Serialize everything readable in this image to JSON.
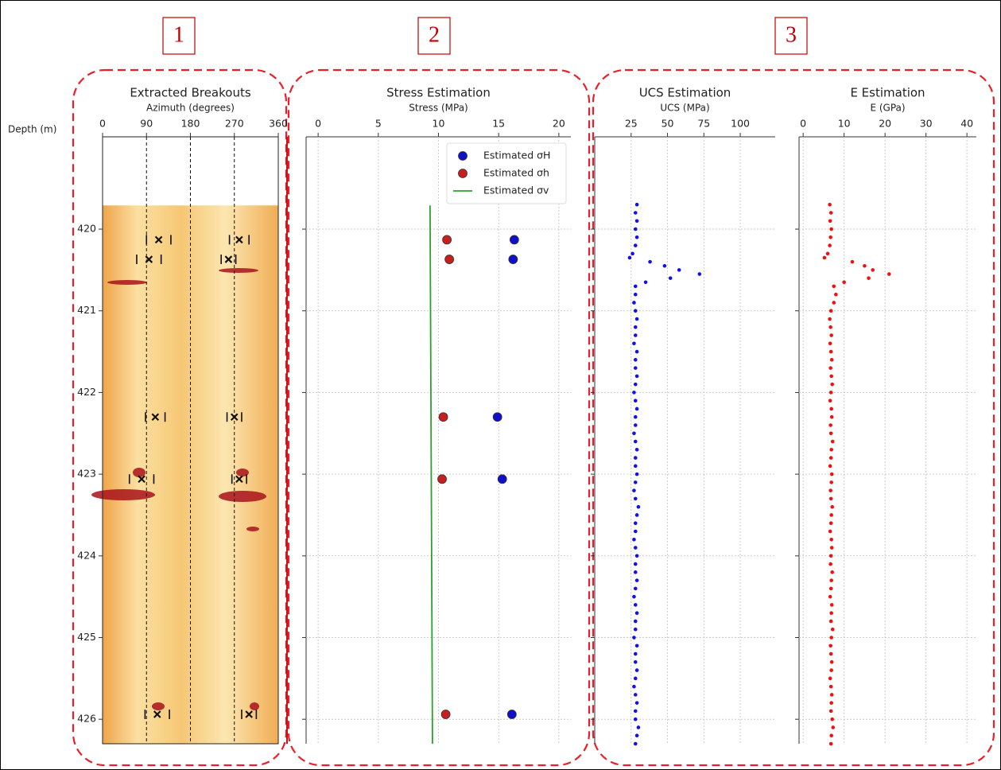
{
  "panel_labels": [
    "1",
    "2",
    "3"
  ],
  "chart_data": [
    {
      "type": "breakout",
      "title": "Extracted Breakouts",
      "xlabel": "Azimuth (degrees)",
      "ylabel": "Depth (m)",
      "xlim": [
        0,
        360
      ],
      "xticks": [
        0,
        90,
        180,
        270,
        360
      ],
      "ylim": [
        418.87,
        426.3
      ],
      "yticks": [
        420,
        421,
        422,
        423,
        424,
        425,
        426
      ],
      "show_ytick_labels": true,
      "grid": true,
      "image_ylim": [
        419.71,
        426.3
      ],
      "series": [
        {
          "color": "#111111",
          "x": [
            115,
            280,
            95,
            258,
            108,
            270,
            80,
            280,
            112,
            300
          ],
          "y": [
            420.13,
            420.13,
            420.37,
            420.37,
            422.3,
            422.3,
            423.06,
            423.06,
            425.94,
            425.94
          ],
          "xerr": [
            25,
            20,
            25,
            15,
            20,
            15,
            25,
            15,
            25,
            15
          ]
        }
      ]
    },
    {
      "type": "scatter",
      "title": "Stress Estimation",
      "xlabel": "Stress (MPa)",
      "xlim": [
        -1,
        21
      ],
      "xticks": [
        0,
        5,
        10,
        15,
        20
      ],
      "ylim": [
        418.87,
        426.3
      ],
      "yticks": [
        420,
        421,
        422,
        423,
        424,
        425,
        426
      ],
      "show_ytick_labels": false,
      "grid": true,
      "legend": "upper right",
      "series": [
        {
          "name": "Estimated σH",
          "color": "#1010c8",
          "x": [
            16.3,
            16.2,
            14.9,
            15.3,
            16.1
          ],
          "y": [
            420.13,
            420.37,
            422.3,
            423.06,
            425.94
          ]
        },
        {
          "name": "Estimated σh",
          "color": "#c81e1e",
          "x": [
            10.7,
            10.9,
            10.4,
            10.3,
            10.6
          ],
          "y": [
            420.13,
            420.37,
            422.3,
            423.06,
            425.94
          ]
        },
        {
          "name": "Estimated σv",
          "color": "#2ca02c",
          "kind": "line",
          "x": [
            9.3,
            9.5
          ],
          "y": [
            419.71,
            426.3
          ]
        }
      ]
    },
    {
      "type": "scatter",
      "title": "UCS Estimation",
      "xlabel": "UCS (MPa)",
      "xlim": [
        0,
        124
      ],
      "xticks": [
        25,
        50,
        75,
        100
      ],
      "ylim": [
        418.87,
        426.3
      ],
      "yticks": [
        420,
        421,
        422,
        423,
        424,
        425,
        426
      ],
      "show_ytick_labels": false,
      "grid": true,
      "series": [
        {
          "color": "#1010f0",
          "kind": "dots",
          "x": [
            29,
            28,
            29,
            28,
            29,
            28,
            26,
            24,
            38,
            48,
            58,
            72,
            52,
            35,
            28,
            28,
            27,
            28,
            29,
            28,
            28,
            27,
            29,
            28,
            28,
            29,
            28,
            27,
            28,
            29,
            28,
            28,
            27,
            28,
            29,
            28,
            28,
            29,
            28,
            27,
            28,
            30,
            29,
            28,
            28,
            27,
            28,
            29,
            28,
            28,
            29,
            28,
            27,
            28,
            29,
            28,
            28,
            27,
            29,
            28,
            28,
            29,
            28,
            27,
            28,
            29,
            28,
            28,
            30,
            29,
            28
          ],
          "y": [
            419.7,
            419.8,
            419.9,
            420.0,
            420.1,
            420.2,
            420.3,
            420.35,
            420.4,
            420.45,
            420.5,
            420.55,
            420.6,
            420.65,
            420.7,
            420.8,
            420.9,
            421.0,
            421.1,
            421.2,
            421.3,
            421.4,
            421.5,
            421.6,
            421.7,
            421.8,
            421.9,
            422.0,
            422.1,
            422.2,
            422.3,
            422.4,
            422.5,
            422.6,
            422.7,
            422.8,
            422.9,
            423.0,
            423.1,
            423.2,
            423.3,
            423.4,
            423.5,
            423.6,
            423.7,
            423.8,
            423.9,
            424.0,
            424.1,
            424.2,
            424.3,
            424.4,
            424.5,
            424.6,
            424.7,
            424.8,
            424.9,
            425.0,
            425.1,
            425.2,
            425.3,
            425.4,
            425.5,
            425.6,
            425.7,
            425.8,
            425.9,
            426.0,
            426.1,
            426.2,
            426.3
          ]
        }
      ]
    },
    {
      "type": "scatter",
      "title": "E Estimation",
      "xlabel": "E (GPa)",
      "xlim": [
        -1,
        42.3
      ],
      "xticks": [
        0,
        10,
        20,
        30,
        40
      ],
      "ylim": [
        418.87,
        426.3
      ],
      "yticks": [
        420,
        421,
        422,
        423,
        424,
        425,
        426
      ],
      "show_ytick_labels": false,
      "grid": true,
      "series": [
        {
          "color": "#f01010",
          "kind": "dots",
          "x": [
            6.5,
            6.8,
            6.6,
            6.9,
            6.7,
            6.5,
            6,
            5.2,
            12,
            15,
            17,
            21,
            16,
            10,
            7.5,
            8,
            7.5,
            6.8,
            6.5,
            6.7,
            6.9,
            6.6,
            6.8,
            7,
            6.7,
            6.9,
            7.1,
            6.8,
            6.6,
            6.9,
            7,
            6.7,
            6.8,
            7.2,
            6.9,
            6.8,
            6.6,
            7,
            6.9,
            6.7,
            6.8,
            7.1,
            6.9,
            6.8,
            6.6,
            6.9,
            7,
            6.8,
            6.7,
            7.1,
            6.9,
            6.8,
            6.6,
            7,
            6.9,
            6.8,
            7.2,
            6.9,
            6.7,
            6.8,
            7,
            6.9,
            6.6,
            6.8,
            7,
            6.9,
            6.8,
            7.1,
            7.3,
            6.9,
            6.8
          ],
          "y": [
            419.7,
            419.8,
            419.9,
            420.0,
            420.1,
            420.2,
            420.3,
            420.35,
            420.4,
            420.45,
            420.5,
            420.55,
            420.6,
            420.65,
            420.7,
            420.8,
            420.9,
            421.0,
            421.1,
            421.2,
            421.3,
            421.4,
            421.5,
            421.6,
            421.7,
            421.8,
            421.9,
            422.0,
            422.1,
            422.2,
            422.3,
            422.4,
            422.5,
            422.6,
            422.7,
            422.8,
            422.9,
            423.0,
            423.1,
            423.2,
            423.3,
            423.4,
            423.5,
            423.6,
            423.7,
            423.8,
            423.9,
            424.0,
            424.1,
            424.2,
            424.3,
            424.4,
            424.5,
            424.6,
            424.7,
            424.8,
            424.9,
            425.0,
            425.1,
            425.2,
            425.3,
            425.4,
            425.5,
            425.6,
            425.7,
            425.8,
            425.9,
            426.0,
            426.1,
            426.2,
            426.3
          ]
        }
      ]
    }
  ]
}
